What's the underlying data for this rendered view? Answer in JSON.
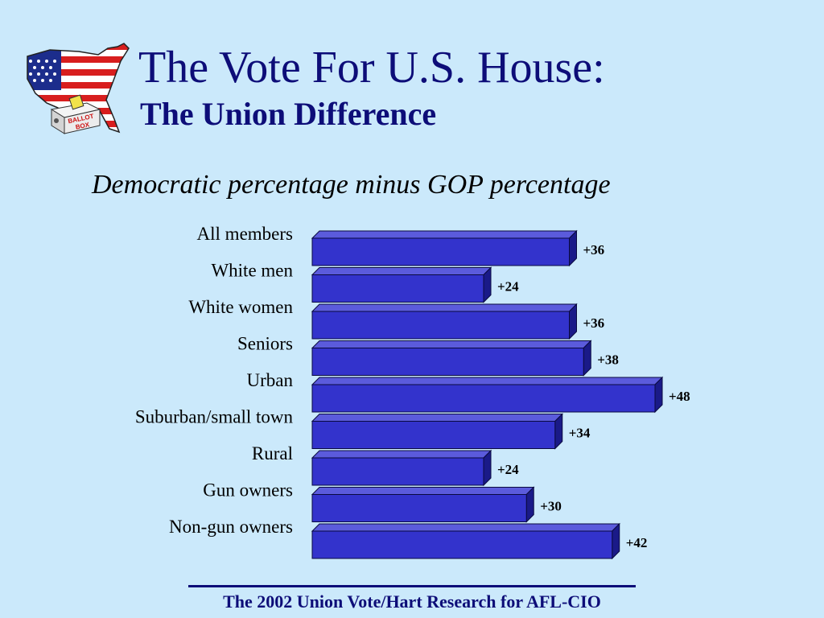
{
  "slide": {
    "title": "The Vote For U.S. House:",
    "subtitle": "The Union Difference",
    "footer": "The 2002 Union Vote/Hart Research for AFL-CIO",
    "logo_text": [
      "BALLOT",
      "BOX"
    ]
  },
  "colors": {
    "background": "#cbe9fb",
    "title": "#0d0d78",
    "bar_front": "#3333cc",
    "bar_top": "#5b5bdc",
    "bar_side": "#1a1a88",
    "bar_outline": "#0a0a40"
  },
  "chart_data": {
    "type": "bar",
    "orientation": "horizontal",
    "title": "Democratic percentage minus GOP percentage",
    "xlabel": "",
    "ylabel": "",
    "categories": [
      "All members",
      "White men",
      "White women",
      "Seniors",
      "Urban",
      "Suburban/small town",
      "Rural",
      "Gun owners",
      "Non-gun owners"
    ],
    "values": [
      36,
      24,
      36,
      38,
      48,
      34,
      24,
      30,
      42
    ],
    "value_labels": [
      "+36",
      "+24",
      "+36",
      "+38",
      "+48",
      "+34",
      "+24",
      "+30",
      "+42"
    ],
    "xlim": [
      0,
      48
    ],
    "grid": false,
    "legend": "none"
  }
}
